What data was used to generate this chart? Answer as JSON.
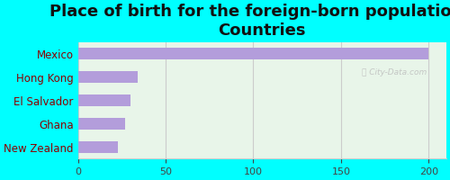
{
  "title": "Place of birth for the foreign-born population -\nCountries",
  "labels": [
    "Mexico",
    "Hong Kong",
    "El Salvador",
    "Ghana",
    "New Zealand"
  ],
  "values": [
    200,
    34,
    30,
    27,
    23
  ],
  "bar_color": "#b39ddb",
  "background_color": "#00ffff",
  "plot_bg_color": "#e8f5e9",
  "xlim": [
    0,
    210
  ],
  "xticks": [
    0,
    50,
    100,
    150,
    200
  ],
  "title_fontsize": 13,
  "label_fontsize": 8.5,
  "tick_fontsize": 8,
  "title_color": "#111111",
  "label_color": "#8b0000"
}
